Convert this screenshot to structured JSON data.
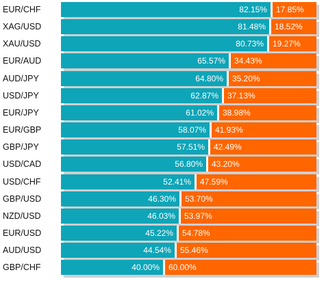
{
  "chart_data": {
    "type": "bar",
    "orientation": "horizontal",
    "stacked": true,
    "categories": [
      "EUR/CHF",
      "XAG/USD",
      "XAU/USD",
      "EUR/AUD",
      "AUD/JPY",
      "USD/JPY",
      "EUR/JPY",
      "EUR/GBP",
      "GBP/JPY",
      "USD/CAD",
      "USD/CHF",
      "GBP/USD",
      "NZD/USD",
      "EUR/USD",
      "AUD/USD",
      "GBP/CHF"
    ],
    "series": [
      {
        "color": "#0ea5b8",
        "values": [
          82.15,
          81.48,
          80.73,
          65.57,
          64.8,
          62.87,
          61.02,
          58.07,
          57.51,
          56.8,
          52.41,
          46.3,
          46.03,
          45.22,
          44.54,
          40.0
        ],
        "labels": [
          "82.15%",
          "81.48%",
          "80.73%",
          "65.57%",
          "64.80%",
          "62.87%",
          "61.02%",
          "58.07%",
          "57.51%",
          "56.80%",
          "52.41%",
          "46.30%",
          "46.03%",
          "45.22%",
          "44.54%",
          "40.00%"
        ]
      },
      {
        "color": "#ff6600",
        "values": [
          17.85,
          18.52,
          19.27,
          34.43,
          35.2,
          37.13,
          38.98,
          41.93,
          42.49,
          43.2,
          47.59,
          53.7,
          53.97,
          54.78,
          55.46,
          60.0
        ],
        "labels": [
          "17.85%",
          "18.52%",
          "19.27%",
          "34.43%",
          "35.20%",
          "37.13%",
          "38.98%",
          "41.93%",
          "42.49%",
          "43.20%",
          "47.59%",
          "53.70%",
          "53.97%",
          "54.78%",
          "55.46%",
          "60.00%"
        ]
      }
    ],
    "xlim": [
      0,
      100
    ],
    "grid": false,
    "legend": "none"
  }
}
